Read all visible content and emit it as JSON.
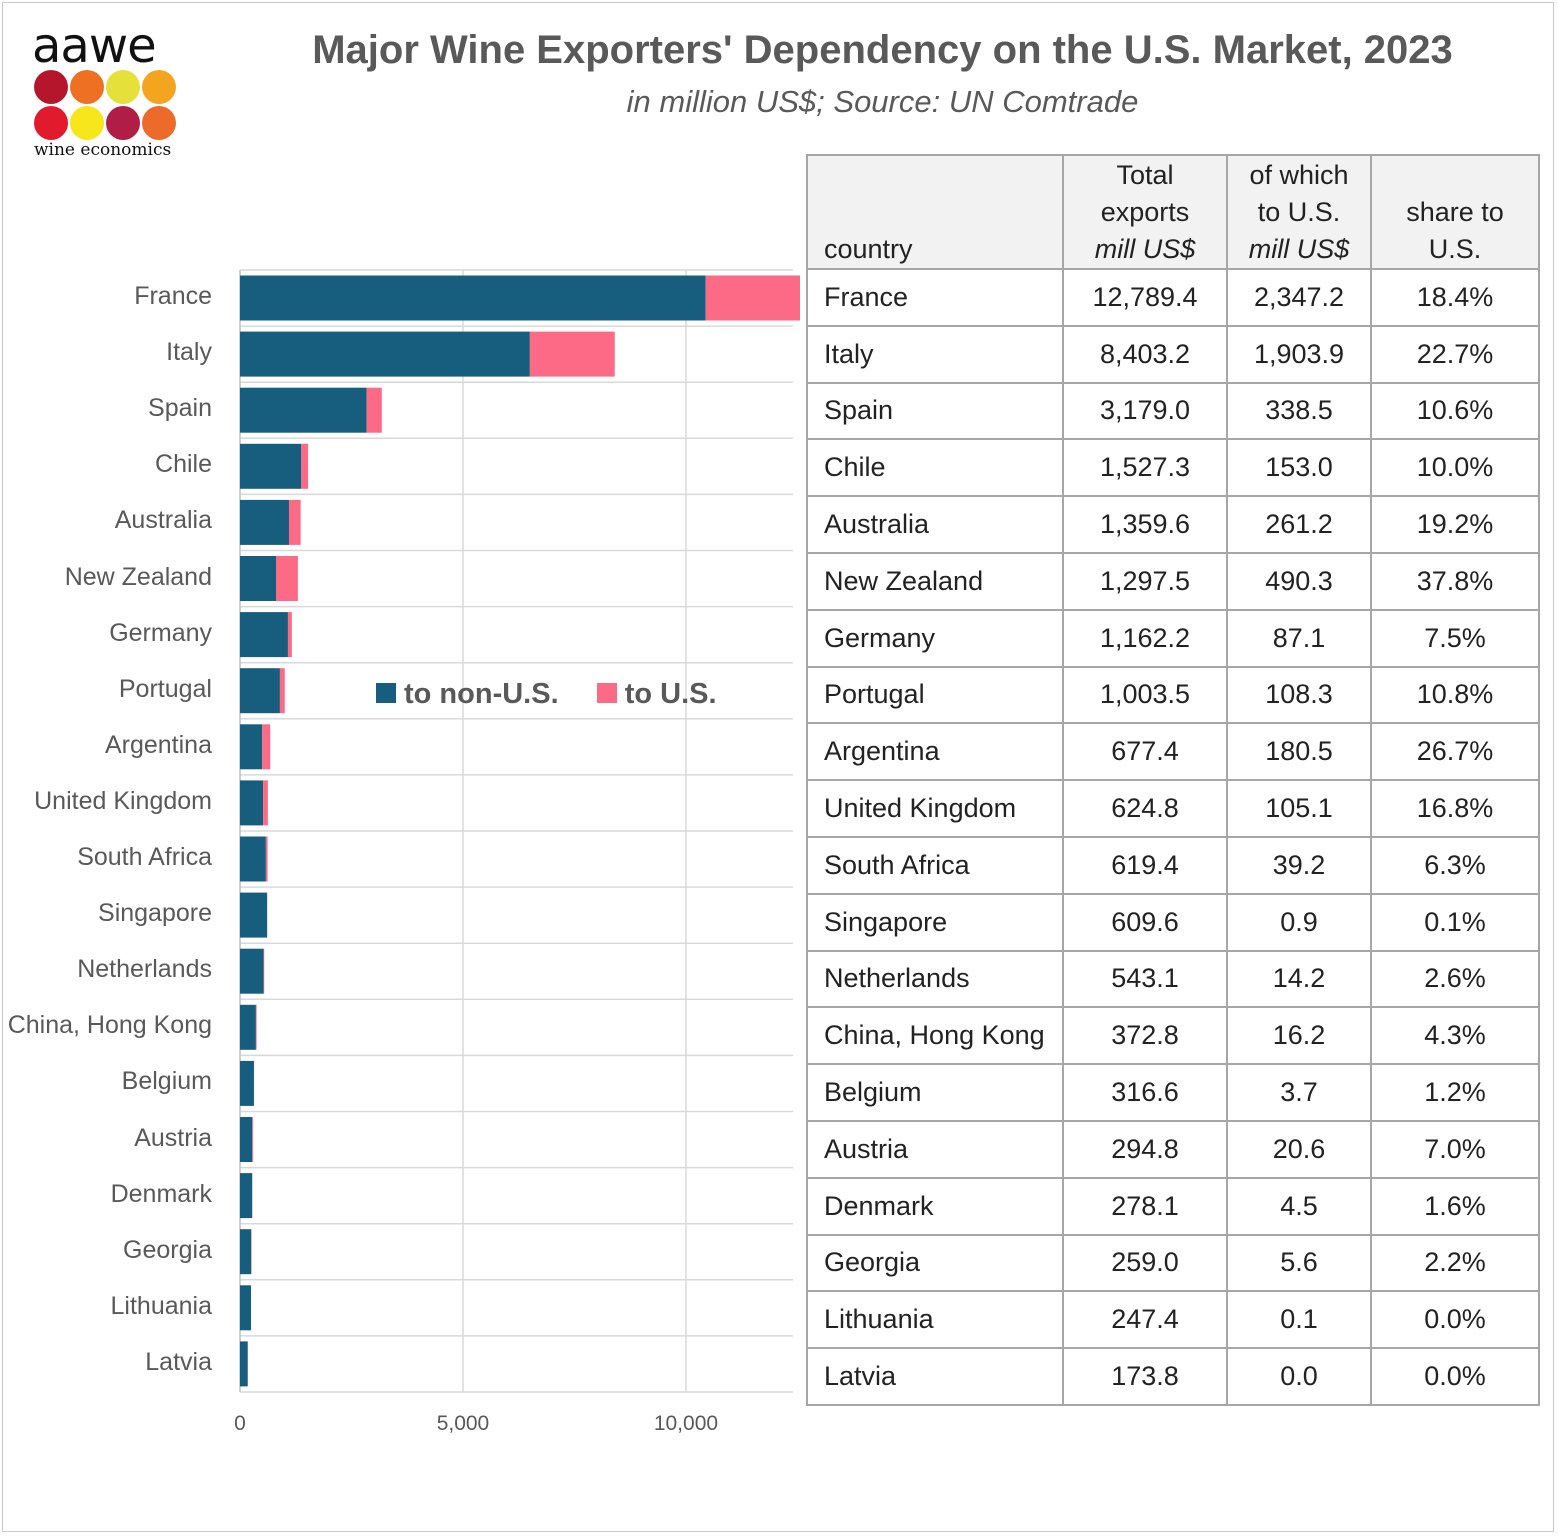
{
  "logo": {
    "name": "aawe",
    "subtitle": "wine economics",
    "dot_colors": [
      "#b5162c",
      "#ee7022",
      "#e6e13a",
      "#f3a51f",
      "#e21a2d",
      "#f7e61c",
      "#b01e48",
      "#ec6a2a"
    ]
  },
  "header": {
    "title": "Major Wine Exporters' Dependency on the U.S. Market, 2023",
    "subtitle": "in million US$; Source: UN Comtrade"
  },
  "colors": {
    "non_us": "#175e7e",
    "us": "#fd6a85"
  },
  "chart_data": {
    "type": "bar",
    "orientation": "horizontal",
    "stacked": true,
    "categories": [
      "France",
      "Italy",
      "Spain",
      "Chile",
      "Australia",
      "New Zealand",
      "Germany",
      "Portugal",
      "Argentina",
      "United Kingdom",
      "South Africa",
      "Singapore",
      "Netherlands",
      "China, Hong Kong",
      "Belgium",
      "Austria",
      "Denmark",
      "Georgia",
      "Lithuania",
      "Latvia"
    ],
    "series": [
      {
        "name": "to non-U.S.",
        "values": [
          10442.2,
          6499.3,
          2840.5,
          1374.3,
          1098.4,
          807.2,
          1075.1,
          895.2,
          496.9,
          519.7,
          580.2,
          608.7,
          528.9,
          356.6,
          312.9,
          274.2,
          273.6,
          253.4,
          247.3,
          173.8
        ]
      },
      {
        "name": "to U.S.",
        "values": [
          2347.2,
          1903.9,
          338.5,
          153.0,
          261.2,
          490.3,
          87.1,
          108.3,
          180.5,
          105.1,
          39.2,
          0.9,
          14.2,
          16.2,
          3.7,
          20.6,
          4.5,
          5.6,
          0.1,
          0.0
        ]
      }
    ],
    "xlim": [
      0,
      12400
    ],
    "xticks": [
      0,
      5000,
      10000
    ],
    "xtick_labels": [
      "0",
      "5,000",
      "10,000"
    ],
    "legend_position": "middle-right",
    "gridlines": "horizontal separators between categories"
  },
  "table": {
    "headers": {
      "country": "country",
      "total_l1": "Total",
      "total_l2": "exports",
      "total_l3": "mill US$",
      "us_l1": "of which",
      "us_l2": "to U.S.",
      "us_l3": "mill US$",
      "share_l1": "share to",
      "share_l2": "U.S."
    },
    "rows": [
      [
        "France",
        "12,789.4",
        "2,347.2",
        "18.4%"
      ],
      [
        "Italy",
        "8,403.2",
        "1,903.9",
        "22.7%"
      ],
      [
        "Spain",
        "3,179.0",
        "338.5",
        "10.6%"
      ],
      [
        "Chile",
        "1,527.3",
        "153.0",
        "10.0%"
      ],
      [
        "Australia",
        "1,359.6",
        "261.2",
        "19.2%"
      ],
      [
        "New Zealand",
        "1,297.5",
        "490.3",
        "37.8%"
      ],
      [
        "Germany",
        "1,162.2",
        "87.1",
        "7.5%"
      ],
      [
        "Portugal",
        "1,003.5",
        "108.3",
        "10.8%"
      ],
      [
        "Argentina",
        "677.4",
        "180.5",
        "26.7%"
      ],
      [
        "United Kingdom",
        "624.8",
        "105.1",
        "16.8%"
      ],
      [
        "South Africa",
        "619.4",
        "39.2",
        "6.3%"
      ],
      [
        "Singapore",
        "609.6",
        "0.9",
        "0.1%"
      ],
      [
        "Netherlands",
        "543.1",
        "14.2",
        "2.6%"
      ],
      [
        "China, Hong Kong",
        "372.8",
        "16.2",
        "4.3%"
      ],
      [
        "Belgium",
        "316.6",
        "3.7",
        "1.2%"
      ],
      [
        "Austria",
        "294.8",
        "20.6",
        "7.0%"
      ],
      [
        "Denmark",
        "278.1",
        "4.5",
        "1.6%"
      ],
      [
        "Georgia",
        "259.0",
        "5.6",
        "2.2%"
      ],
      [
        "Lithuania",
        "247.4",
        "0.1",
        "0.0%"
      ],
      [
        "Latvia",
        "173.8",
        "0.0",
        "0.0%"
      ]
    ]
  }
}
